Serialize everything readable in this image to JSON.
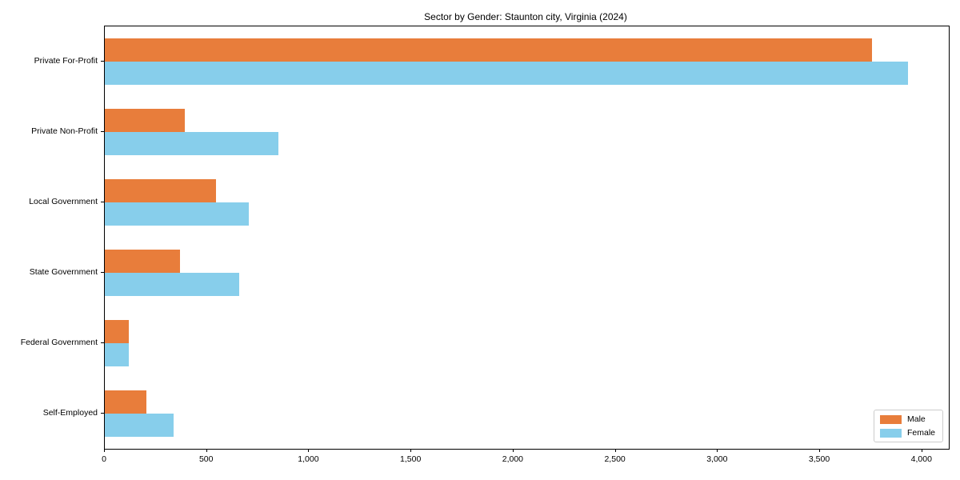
{
  "title": "Sector by Gender: Staunton city, Virginia (2024)",
  "colors": {
    "male_bar": "#e87d3b",
    "female_bar": "#87ceeb",
    "axis": "#000000",
    "legend_border": "#cccccc",
    "background": "#ffffff"
  },
  "legend": {
    "position": "lower right",
    "entries": [
      "Male",
      "Female"
    ]
  },
  "chart_data": {
    "type": "bar",
    "orientation": "horizontal",
    "title": "Sector by Gender: Staunton city, Virginia (2024)",
    "categories": [
      "Private For-Profit",
      "Private Non-Profit",
      "Local Government",
      "State Government",
      "Federal Government",
      "Self-Employed"
    ],
    "series": [
      {
        "name": "Male",
        "color": "#e87d3b",
        "values": [
          3756,
          390,
          543,
          367,
          118,
          204
        ]
      },
      {
        "name": "Female",
        "color": "#87ceeb",
        "values": [
          3932,
          850,
          703,
          657,
          116,
          337
        ]
      }
    ],
    "xlabel": "",
    "ylabel": "",
    "xlim": [
      0,
      4130
    ],
    "xticks": [
      0,
      500,
      1000,
      1500,
      2000,
      2500,
      3000,
      3500,
      4000
    ],
    "xtick_labels": [
      "0",
      "500",
      "1,000",
      "1,500",
      "2,000",
      "2,500",
      "3,000",
      "3,500",
      "4,000"
    ],
    "grid": false,
    "legend_position": "lower right"
  }
}
